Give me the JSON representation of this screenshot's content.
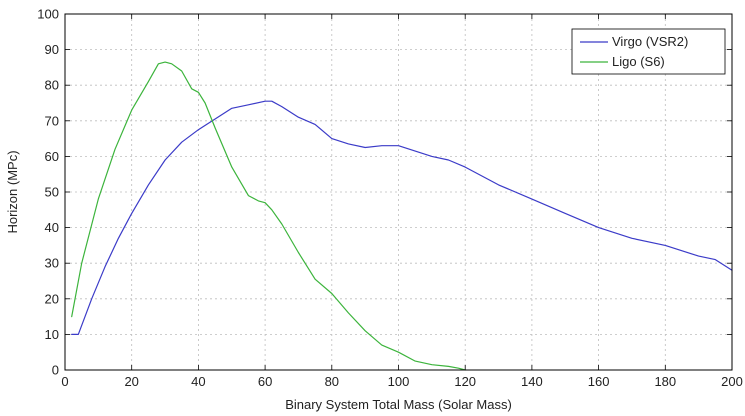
{
  "chart_data": {
    "type": "line",
    "title": "",
    "xlabel": "Binary System Total Mass (Solar Mass)",
    "ylabel": "Horizon (MPc)",
    "xlim": [
      0,
      200
    ],
    "ylim": [
      0,
      100
    ],
    "xticks": [
      0,
      20,
      40,
      60,
      80,
      100,
      120,
      140,
      160,
      180,
      200
    ],
    "yticks": [
      0,
      10,
      20,
      30,
      40,
      50,
      60,
      70,
      80,
      90,
      100
    ],
    "grid": true,
    "legend_position": "top-right",
    "series": [
      {
        "name": "Virgo (VSR2)",
        "color": "#3b3bc8",
        "x": [
          2,
          4,
          8,
          12,
          16,
          20,
          25,
          30,
          35,
          40,
          45,
          50,
          55,
          60,
          62,
          65,
          70,
          75,
          80,
          85,
          90,
          95,
          100,
          105,
          110,
          115,
          120,
          130,
          140,
          150,
          160,
          170,
          180,
          190,
          195,
          200
        ],
        "y": [
          10,
          10,
          20,
          29,
          37,
          44,
          52,
          59,
          64,
          67.5,
          70.5,
          73.5,
          74.5,
          75.5,
          75.5,
          74,
          71,
          69,
          65,
          63.5,
          62.5,
          63,
          63,
          61.5,
          60,
          59,
          57,
          52,
          48,
          44,
          40,
          37,
          35,
          32,
          31,
          28
        ]
      },
      {
        "name": "Ligo (S6)",
        "color": "#3cb43c",
        "x": [
          2,
          5,
          10,
          15,
          20,
          25,
          28,
          30,
          32,
          35,
          38,
          40,
          42,
          45,
          50,
          55,
          58,
          60,
          62,
          65,
          70,
          75,
          80,
          85,
          90,
          95,
          100,
          105,
          110,
          115,
          118,
          120
        ],
        "y": [
          15,
          30,
          48,
          62,
          73,
          81,
          86,
          86.5,
          86,
          84,
          79,
          78,
          75,
          68,
          57,
          49,
          47.5,
          47,
          45,
          41,
          33,
          25.5,
          21.5,
          16,
          11,
          7,
          5,
          2.5,
          1.5,
          1,
          0.5,
          0
        ]
      }
    ]
  }
}
